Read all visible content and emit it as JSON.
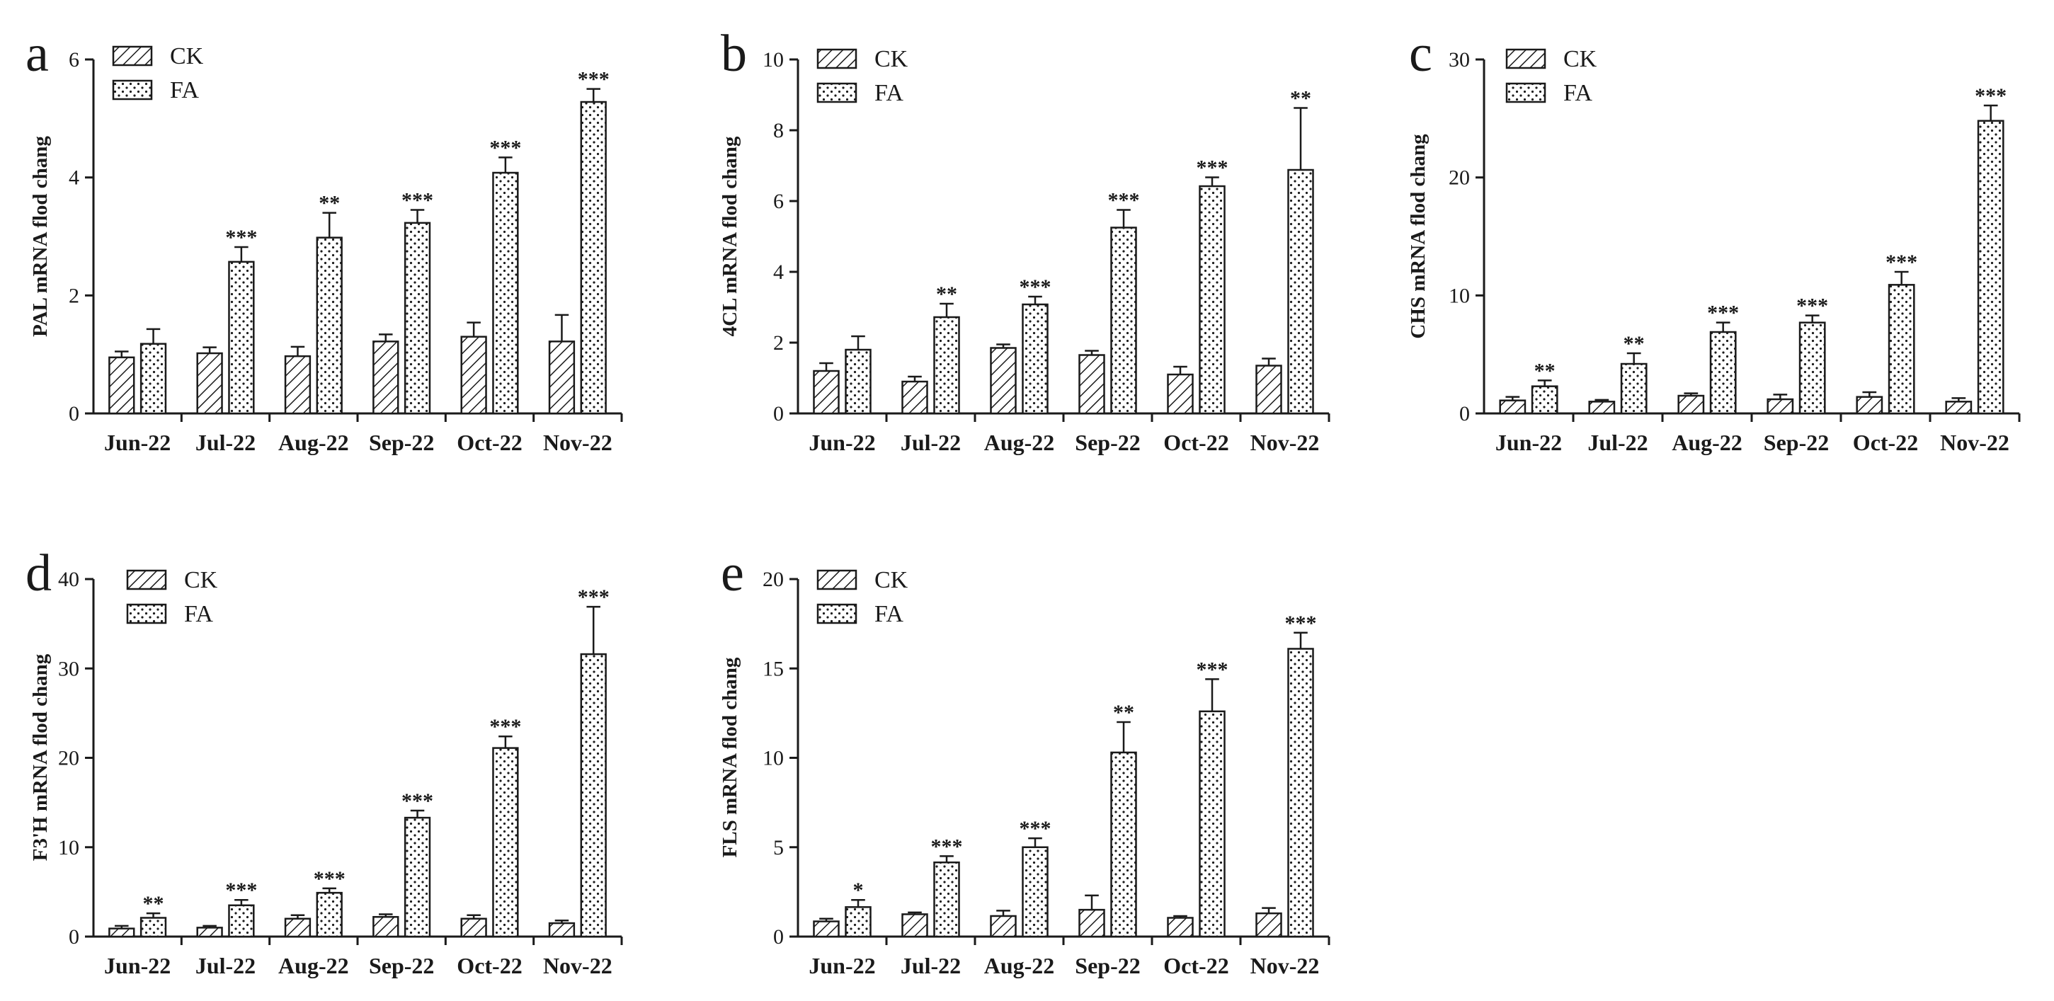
{
  "colors": {
    "axis": "#1a1a1a",
    "bar_stroke": "#1a1a1a",
    "bar_fill": "#ffffff",
    "text": "#1a1a1a"
  },
  "chart_data": [
    {
      "type": "bar",
      "panel": "a",
      "ylabel": "PAL mRNA flod chang",
      "ylim": [
        0,
        6
      ],
      "yticks": [
        0,
        2,
        4,
        6
      ],
      "categories": [
        "Jun-22",
        "Jul-22",
        "Aug-22",
        "Sep-22",
        "Oct-22",
        "Nov-22"
      ],
      "series": [
        {
          "name": "CK",
          "pattern": "hatch",
          "values": [
            0.95,
            1.02,
            0.97,
            1.22,
            1.3,
            1.22
          ],
          "errors": [
            0.1,
            0.1,
            0.16,
            0.12,
            0.24,
            0.45
          ]
        },
        {
          "name": "FA",
          "pattern": "dots",
          "values": [
            1.18,
            2.57,
            2.98,
            3.23,
            4.08,
            5.28
          ],
          "errors": [
            0.25,
            0.25,
            0.42,
            0.22,
            0.26,
            0.22
          ]
        }
      ],
      "significance": [
        "",
        "***",
        "**",
        "***",
        "***",
        "***"
      ],
      "legend": "top-left"
    },
    {
      "type": "bar",
      "panel": "b",
      "ylabel": "4CL mRNA flod chang",
      "ylim": [
        0,
        10
      ],
      "yticks": [
        0,
        2,
        4,
        6,
        8,
        10
      ],
      "categories": [
        "Jun-22",
        "Jul-22",
        "Aug-22",
        "Sep-22",
        "Oct-22",
        "Nov-22"
      ],
      "series": [
        {
          "name": "CK",
          "pattern": "hatch",
          "values": [
            1.2,
            0.9,
            1.85,
            1.65,
            1.1,
            1.35
          ],
          "errors": [
            0.22,
            0.14,
            0.1,
            0.12,
            0.22,
            0.2
          ]
        },
        {
          "name": "FA",
          "pattern": "dots",
          "values": [
            1.8,
            2.72,
            3.08,
            5.25,
            6.42,
            6.88
          ],
          "errors": [
            0.38,
            0.38,
            0.22,
            0.5,
            0.25,
            1.75
          ]
        }
      ],
      "significance": [
        "",
        "**",
        "***",
        "***",
        "***",
        "**"
      ],
      "legend": "top-left"
    },
    {
      "type": "bar",
      "panel": "c",
      "ylabel": "CHS mRNA flod chang",
      "ylim": [
        0,
        30
      ],
      "yticks": [
        0,
        10,
        20,
        30
      ],
      "categories": [
        "Jun-22",
        "Jul-22",
        "Aug-22",
        "Sep-22",
        "Oct-22",
        "Nov-22"
      ],
      "series": [
        {
          "name": "CK",
          "pattern": "hatch",
          "values": [
            1.1,
            1.0,
            1.5,
            1.2,
            1.4,
            1.0
          ],
          "errors": [
            0.3,
            0.15,
            0.2,
            0.4,
            0.4,
            0.3
          ]
        },
        {
          "name": "FA",
          "pattern": "dots",
          "values": [
            2.3,
            4.2,
            6.9,
            7.7,
            10.9,
            24.8
          ],
          "errors": [
            0.5,
            0.9,
            0.8,
            0.6,
            1.1,
            1.3
          ]
        }
      ],
      "significance": [
        "**",
        "**",
        "***",
        "***",
        "***",
        "***"
      ],
      "legend": "top-left"
    },
    {
      "type": "bar",
      "panel": "d",
      "ylabel": "F3'H mRNA flod chang",
      "ylim": [
        0,
        40
      ],
      "yticks": [
        0,
        10,
        20,
        30,
        40
      ],
      "categories": [
        "Jun-22",
        "Jul-22",
        "Aug-22",
        "Sep-22",
        "Oct-22",
        "Nov-22"
      ],
      "series": [
        {
          "name": "CK",
          "pattern": "hatch",
          "values": [
            0.9,
            1.0,
            2.0,
            2.2,
            2.0,
            1.5
          ],
          "errors": [
            0.3,
            0.2,
            0.4,
            0.3,
            0.4,
            0.3
          ]
        },
        {
          "name": "FA",
          "pattern": "dots",
          "values": [
            2.1,
            3.5,
            4.9,
            13.3,
            21.1,
            31.6
          ],
          "errors": [
            0.5,
            0.6,
            0.5,
            0.8,
            1.3,
            5.3
          ]
        }
      ],
      "significance": [
        "**",
        "***",
        "***",
        "***",
        "***",
        "***"
      ],
      "legend": "top-left"
    },
    {
      "type": "bar",
      "panel": "e",
      "ylabel": "FLS mRNA flod chang",
      "ylim": [
        0,
        20
      ],
      "yticks": [
        0,
        5,
        10,
        15,
        20
      ],
      "categories": [
        "Jun-22",
        "Jul-22",
        "Aug-22",
        "Sep-22",
        "Oct-22",
        "Nov-22"
      ],
      "series": [
        {
          "name": "CK",
          "pattern": "hatch",
          "values": [
            0.85,
            1.25,
            1.15,
            1.5,
            1.05,
            1.3
          ],
          "errors": [
            0.15,
            0.1,
            0.3,
            0.8,
            0.1,
            0.3
          ]
        },
        {
          "name": "FA",
          "pattern": "dots",
          "values": [
            1.65,
            4.15,
            5.0,
            10.3,
            12.6,
            16.1
          ],
          "errors": [
            0.4,
            0.35,
            0.5,
            1.7,
            1.8,
            0.9
          ]
        }
      ],
      "significance": [
        "*",
        "***",
        "***",
        "**",
        "***",
        "***"
      ],
      "legend": "top-left"
    }
  ]
}
